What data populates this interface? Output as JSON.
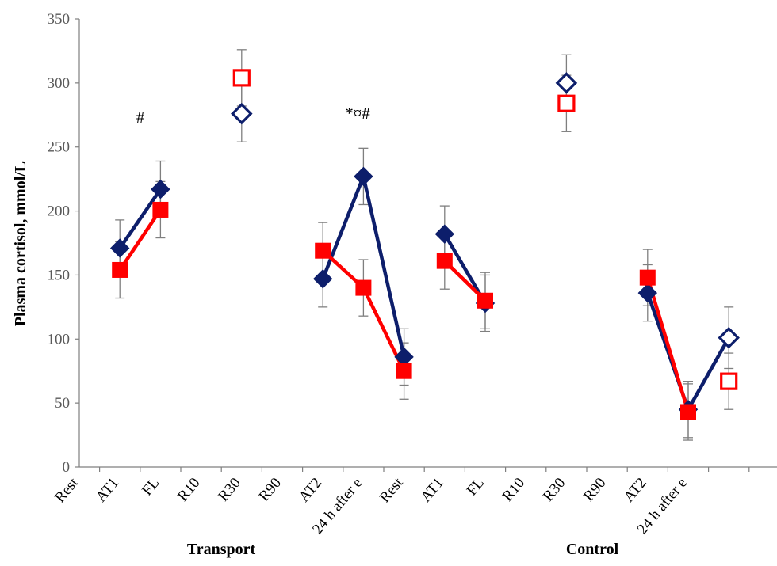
{
  "chart_data": {
    "type": "line",
    "ylabel": "Plasma cortisol, mmol/L",
    "ylim": [
      0,
      350
    ],
    "yticks": [
      0,
      50,
      100,
      150,
      200,
      250,
      300,
      350
    ],
    "categories": [
      "Rest",
      "AT1",
      "FL",
      "R10",
      "R30",
      "R90",
      "AT2",
      "24 h after e",
      "Rest",
      "AT1",
      "FL",
      "R10",
      "R30",
      "R90",
      "AT2",
      "24 h after e"
    ],
    "groups": [
      "Transport",
      "Control"
    ],
    "annotations": [
      "#",
      "*¤#"
    ],
    "series": [
      {
        "color": "#0d1e6b",
        "marker": "diamond",
        "values": [
          171,
          217,
          null,
          276,
          null,
          147,
          227,
          86,
          182,
          128,
          null,
          300,
          null,
          136,
          45,
          101
        ],
        "error": [
          22,
          22,
          null,
          22,
          null,
          22,
          22,
          22,
          22,
          22,
          null,
          22,
          null,
          22,
          22,
          24
        ],
        "hollow": [
          false,
          false,
          false,
          true,
          false,
          false,
          false,
          false,
          false,
          false,
          false,
          true,
          false,
          false,
          false,
          true
        ],
        "segments": [
          [
            0,
            1
          ],
          [
            5,
            6,
            7
          ],
          [
            8,
            9
          ],
          [
            13,
            14,
            15
          ]
        ]
      },
      {
        "color": "#ff0000",
        "marker": "square",
        "values": [
          154,
          201,
          null,
          304,
          null,
          169,
          140,
          75,
          161,
          130,
          null,
          284,
          null,
          148,
          43,
          67
        ],
        "error": [
          22,
          22,
          null,
          22,
          null,
          22,
          22,
          22,
          22,
          22,
          null,
          22,
          null,
          22,
          22,
          22
        ],
        "hollow": [
          false,
          false,
          false,
          true,
          false,
          false,
          false,
          false,
          false,
          false,
          false,
          true,
          false,
          false,
          false,
          true
        ],
        "segments": [
          [
            0,
            1
          ],
          [
            5,
            6,
            7
          ],
          [
            8,
            9
          ],
          [
            13,
            14
          ]
        ]
      }
    ]
  }
}
